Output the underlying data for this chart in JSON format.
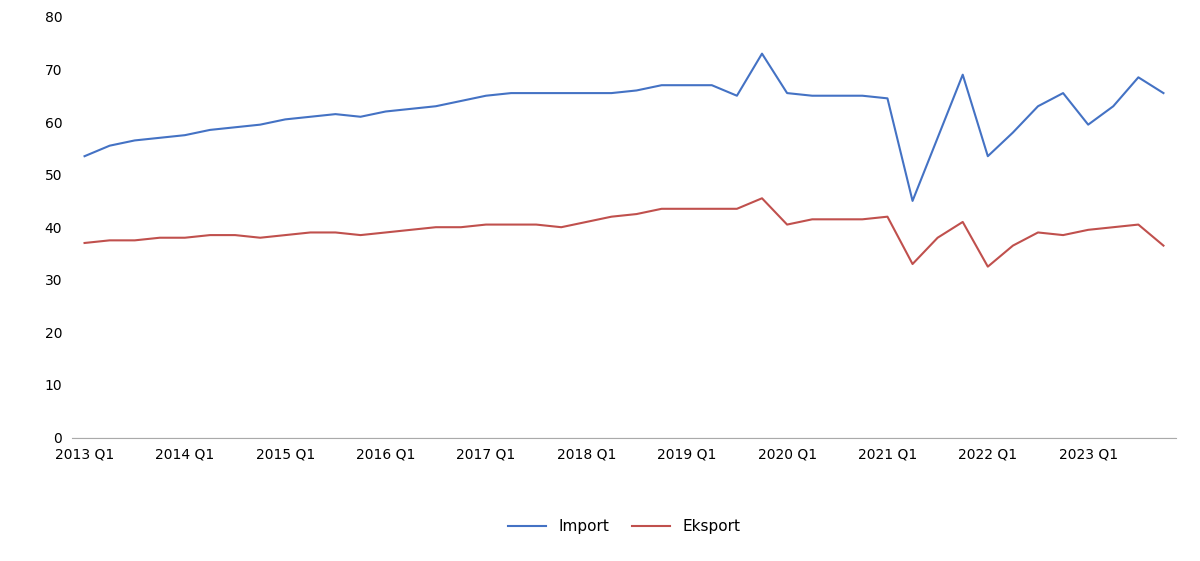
{
  "import_values": [
    53.5,
    55.5,
    56.5,
    57.0,
    57.5,
    58.5,
    59.0,
    59.5,
    60.5,
    61.0,
    61.5,
    61.0,
    62.0,
    62.5,
    63.0,
    64.0,
    65.0,
    65.5,
    65.5,
    65.5,
    65.5,
    65.5,
    66.0,
    67.0,
    67.0,
    67.0,
    65.0,
    73.0,
    65.5,
    65.0,
    65.0,
    65.0,
    64.5,
    45.0,
    57.0,
    69.0,
    53.5,
    58.0,
    63.0,
    65.5,
    59.5,
    63.0,
    68.5,
    65.5
  ],
  "eksport_values": [
    37.0,
    37.5,
    37.5,
    38.0,
    38.0,
    38.5,
    38.5,
    38.0,
    38.5,
    39.0,
    39.0,
    38.5,
    39.0,
    39.5,
    40.0,
    40.0,
    40.5,
    40.5,
    40.5,
    40.0,
    41.0,
    42.0,
    42.5,
    43.5,
    43.5,
    43.5,
    43.5,
    45.5,
    40.5,
    41.5,
    41.5,
    41.5,
    42.0,
    33.0,
    38.0,
    41.0,
    32.5,
    36.5,
    39.0,
    38.5,
    39.5,
    40.0,
    40.5,
    36.5
  ],
  "x_tick_positions": [
    0,
    4,
    8,
    12,
    16,
    20,
    24,
    28,
    32,
    36,
    40
  ],
  "x_tick_labels": [
    "2013 Q1",
    "2014 Q1",
    "2015 Q1",
    "2016 Q1",
    "2017 Q1",
    "2018 Q1",
    "2019 Q1",
    "2020 Q1",
    "2021 Q1",
    "2022 Q1",
    "2023 Q1"
  ],
  "import_color": "#4472C4",
  "eksport_color": "#C0504D",
  "ylim": [
    0,
    80
  ],
  "yticks": [
    0,
    10,
    20,
    30,
    40,
    50,
    60,
    70,
    80
  ],
  "legend_import": "Import",
  "legend_eksport": "Eksport",
  "background_color": "#ffffff",
  "line_width": 1.5
}
